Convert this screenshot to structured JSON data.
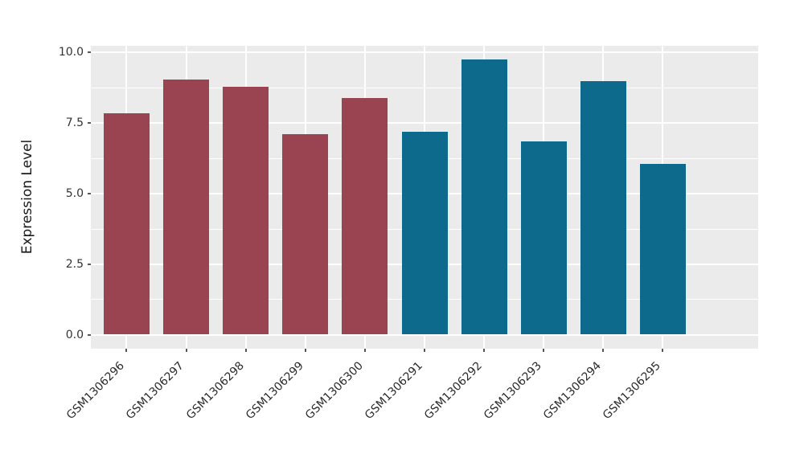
{
  "chart_data": {
    "type": "bar",
    "title": "",
    "xlabel": "",
    "ylabel": "Expression Level",
    "categories": [
      "GSM1306296",
      "GSM1306297",
      "GSM1306298",
      "GSM1306299",
      "GSM1306300",
      "GSM1306291",
      "GSM1306292",
      "GSM1306293",
      "GSM1306294",
      "GSM1306295"
    ],
    "values": [
      7.85,
      9.05,
      8.8,
      7.1,
      8.4,
      7.2,
      9.75,
      6.85,
      9.0,
      6.05
    ],
    "bar_colors": [
      "#9A4451",
      "#9A4451",
      "#9A4451",
      "#9A4451",
      "#9A4451",
      "#0D6A8C",
      "#0D6A8C",
      "#0D6A8C",
      "#0D6A8C",
      "#0D6A8C"
    ],
    "ylim": [
      0,
      10.0
    ],
    "ytick_labels": [
      "0.0",
      "2.5",
      "5.0",
      "7.5",
      "10.0"
    ],
    "yticks": [
      0,
      2.5,
      5,
      7.5,
      10
    ],
    "minor_gridlines": [
      1.25,
      3.75,
      6.25,
      8.75
    ],
    "grid": true,
    "legend": "none",
    "panel_background": "#EBEBEB",
    "grid_color": "#FFFFFF",
    "figure_background": "#FFFFFF",
    "x_label_rotation_deg": 45
  }
}
